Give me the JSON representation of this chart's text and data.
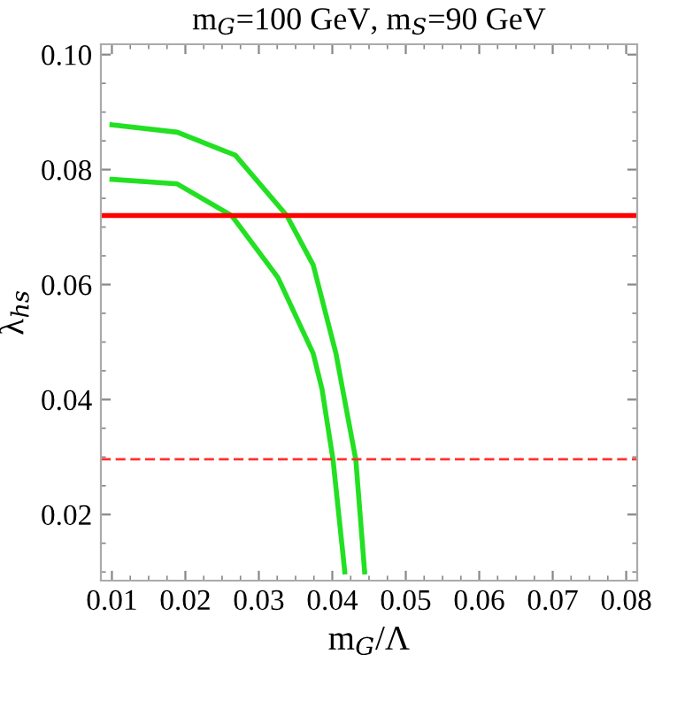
{
  "chart_data": {
    "type": "line",
    "title": "m$_{G}$=100 GeV, m$_{S}$=90 GeV",
    "xlabel": "m$_{G}$/Λ",
    "ylabel": "λ$_{hs}$",
    "xlim": [
      0.0085,
      0.0815
    ],
    "ylim": [
      0.0085,
      0.1018
    ],
    "xticks": [
      0.01,
      0.02,
      0.03,
      0.04,
      0.05,
      0.06,
      0.07,
      0.08
    ],
    "yticks": [
      {
        "value": 0.02,
        "label": "0.02"
      },
      {
        "value": 0.04,
        "label": "0.04"
      },
      {
        "value": 0.06,
        "label": "0.06"
      },
      {
        "value": 0.08,
        "label": "0.08"
      },
      {
        "value": 0.1,
        "label": "0.10"
      }
    ],
    "grid": false,
    "legend": false,
    "marker": "none",
    "series": [
      {
        "color": "#22e022",
        "line_style": "solid",
        "x": [
          0.01,
          0.0189,
          0.0268,
          0.0338,
          0.0374,
          0.0405,
          0.0432,
          0.0444
        ],
        "values": [
          0.0878,
          0.0865,
          0.0825,
          0.072,
          0.0634,
          0.048,
          0.0295,
          0.01
        ]
      },
      {
        "color": "#22e022",
        "line_style": "solid",
        "x": [
          0.01,
          0.0189,
          0.0263,
          0.0326,
          0.0374,
          0.0386,
          0.0401,
          0.0417
        ],
        "values": [
          0.0783,
          0.0775,
          0.072,
          0.0612,
          0.048,
          0.0418,
          0.0295,
          0.01
        ]
      },
      {
        "color": "#ff0000",
        "line_style": "solid",
        "x": [
          0.0085,
          0.0815
        ],
        "values": [
          0.072,
          0.072
        ]
      },
      {
        "color": "#ff3030",
        "line_style": "dashed",
        "x": [
          0.0085,
          0.0815
        ],
        "values": [
          0.0296,
          0.0296
        ]
      }
    ]
  }
}
